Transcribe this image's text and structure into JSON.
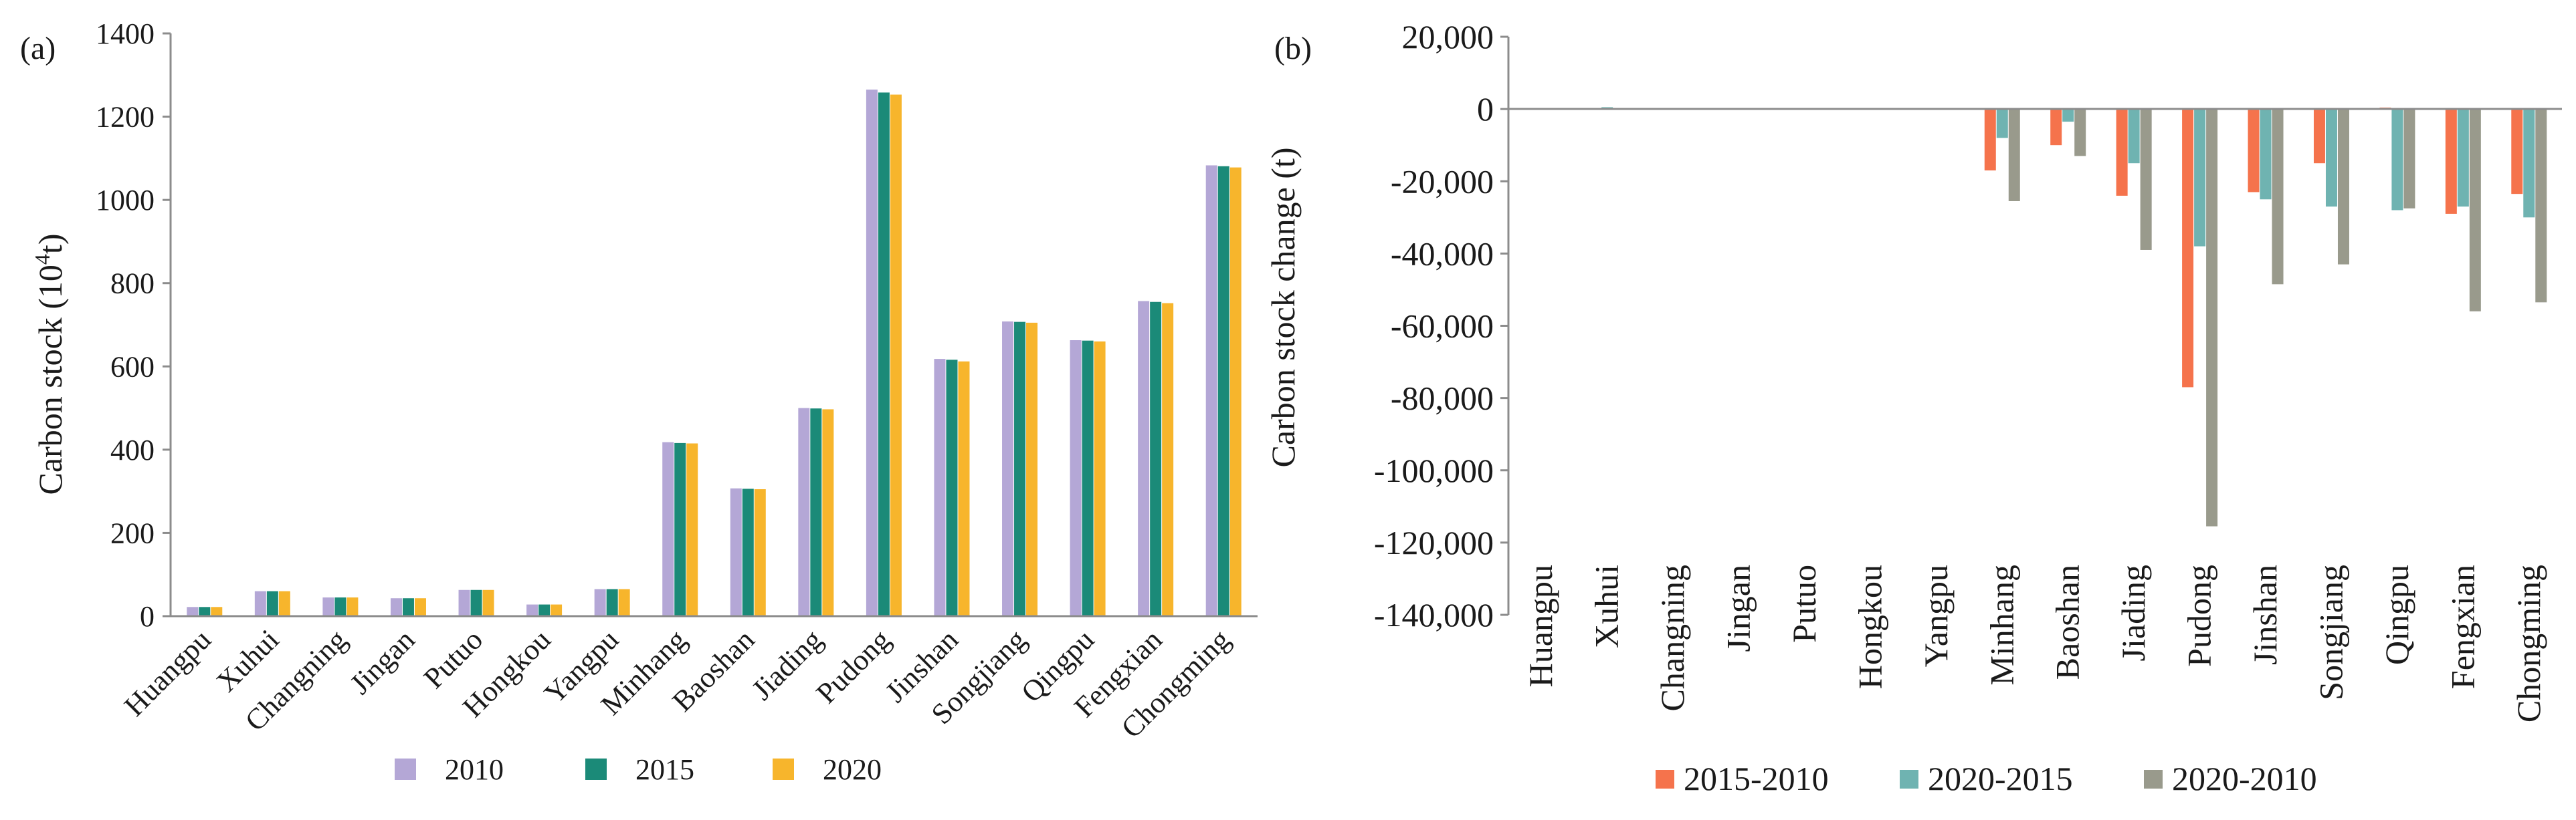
{
  "chart_data": [
    {
      "panel_label": "(a)",
      "type": "bar",
      "title": "",
      "xlabel": "",
      "ylabel": "Carbon stock (10",
      "ylabel_sup": "4",
      "ylabel_suffix": "t)",
      "ylim": [
        0,
        1400
      ],
      "yticks": [
        0,
        200,
        400,
        600,
        800,
        1000,
        1200,
        1400
      ],
      "ytick_labels": [
        "0",
        "200",
        "400",
        "600",
        "800",
        "1000",
        "1200",
        "1400"
      ],
      "categories": [
        "Huangpu",
        "Xuhui",
        "Changning",
        "Jingan",
        "Putuo",
        "Hongkou",
        "Yangpu",
        "Minhang",
        "Baoshan",
        "Jiading",
        "Pudong",
        "Jinshan",
        "Songjiang",
        "Qingpu",
        "Fengxian",
        "Chongming"
      ],
      "series": [
        {
          "name": "2010",
          "color": "#b4a7d6",
          "values": [
            22,
            60,
            45,
            43,
            63,
            28,
            65,
            418,
            307,
            500,
            1265,
            618,
            708,
            663,
            757,
            1083
          ]
        },
        {
          "name": "2015",
          "color": "#1b8a78",
          "values": [
            22,
            60,
            45,
            43,
            63,
            28,
            65,
            416,
            306,
            499,
            1258,
            616,
            707,
            662,
            755,
            1081
          ]
        },
        {
          "name": "2020",
          "color": "#f7b52c",
          "values": [
            22,
            60,
            45,
            43,
            63,
            28,
            65,
            415,
            305,
            497,
            1253,
            612,
            705,
            660,
            752,
            1078
          ]
        }
      ],
      "legend": "bottom"
    },
    {
      "panel_label": "(b)",
      "type": "bar",
      "title": "",
      "xlabel": "",
      "ylabel": "Carbon stock change (t)",
      "ylim": [
        -140000,
        20000
      ],
      "yticks": [
        20000,
        0,
        -20000,
        -40000,
        -60000,
        -80000,
        -100000,
        -120000,
        -140000
      ],
      "ytick_labels": [
        "20,000",
        "0",
        "-20,000",
        "-40,000",
        "-60,000",
        "-80,000",
        "-100,000",
        "-120,000",
        "-140,000"
      ],
      "categories": [
        "Huangpu",
        "Xuhui",
        "Changning",
        "Jingan",
        "Putuo",
        "Hongkou",
        "Yangpu",
        "Minhang",
        "Baoshan",
        "Jiading",
        "Pudong",
        "Jinshan",
        "Songjiang",
        "Qingpu",
        "Fengxian",
        "Chongming"
      ],
      "series": [
        {
          "name": "2015-2010",
          "color": "#f5734c",
          "values": [
            0,
            0,
            0,
            0,
            0,
            0,
            0,
            -17000,
            -10000,
            -24000,
            -77000,
            -23000,
            -15000,
            400,
            -29000,
            -23500
          ]
        },
        {
          "name": "2020-2015",
          "color": "#6fb3b1",
          "values": [
            0,
            500,
            0,
            0,
            0,
            0,
            0,
            -8000,
            -3500,
            -15000,
            -38000,
            -25000,
            -27000,
            -28000,
            -27000,
            -30000
          ]
        },
        {
          "name": "2020-2010",
          "color": "#999a8c",
          "values": [
            0,
            0,
            0,
            0,
            0,
            0,
            0,
            -25500,
            -13000,
            -39000,
            -115500,
            -48500,
            -43000,
            -27500,
            -56000,
            -53500
          ]
        }
      ],
      "legend": "bottom"
    }
  ]
}
